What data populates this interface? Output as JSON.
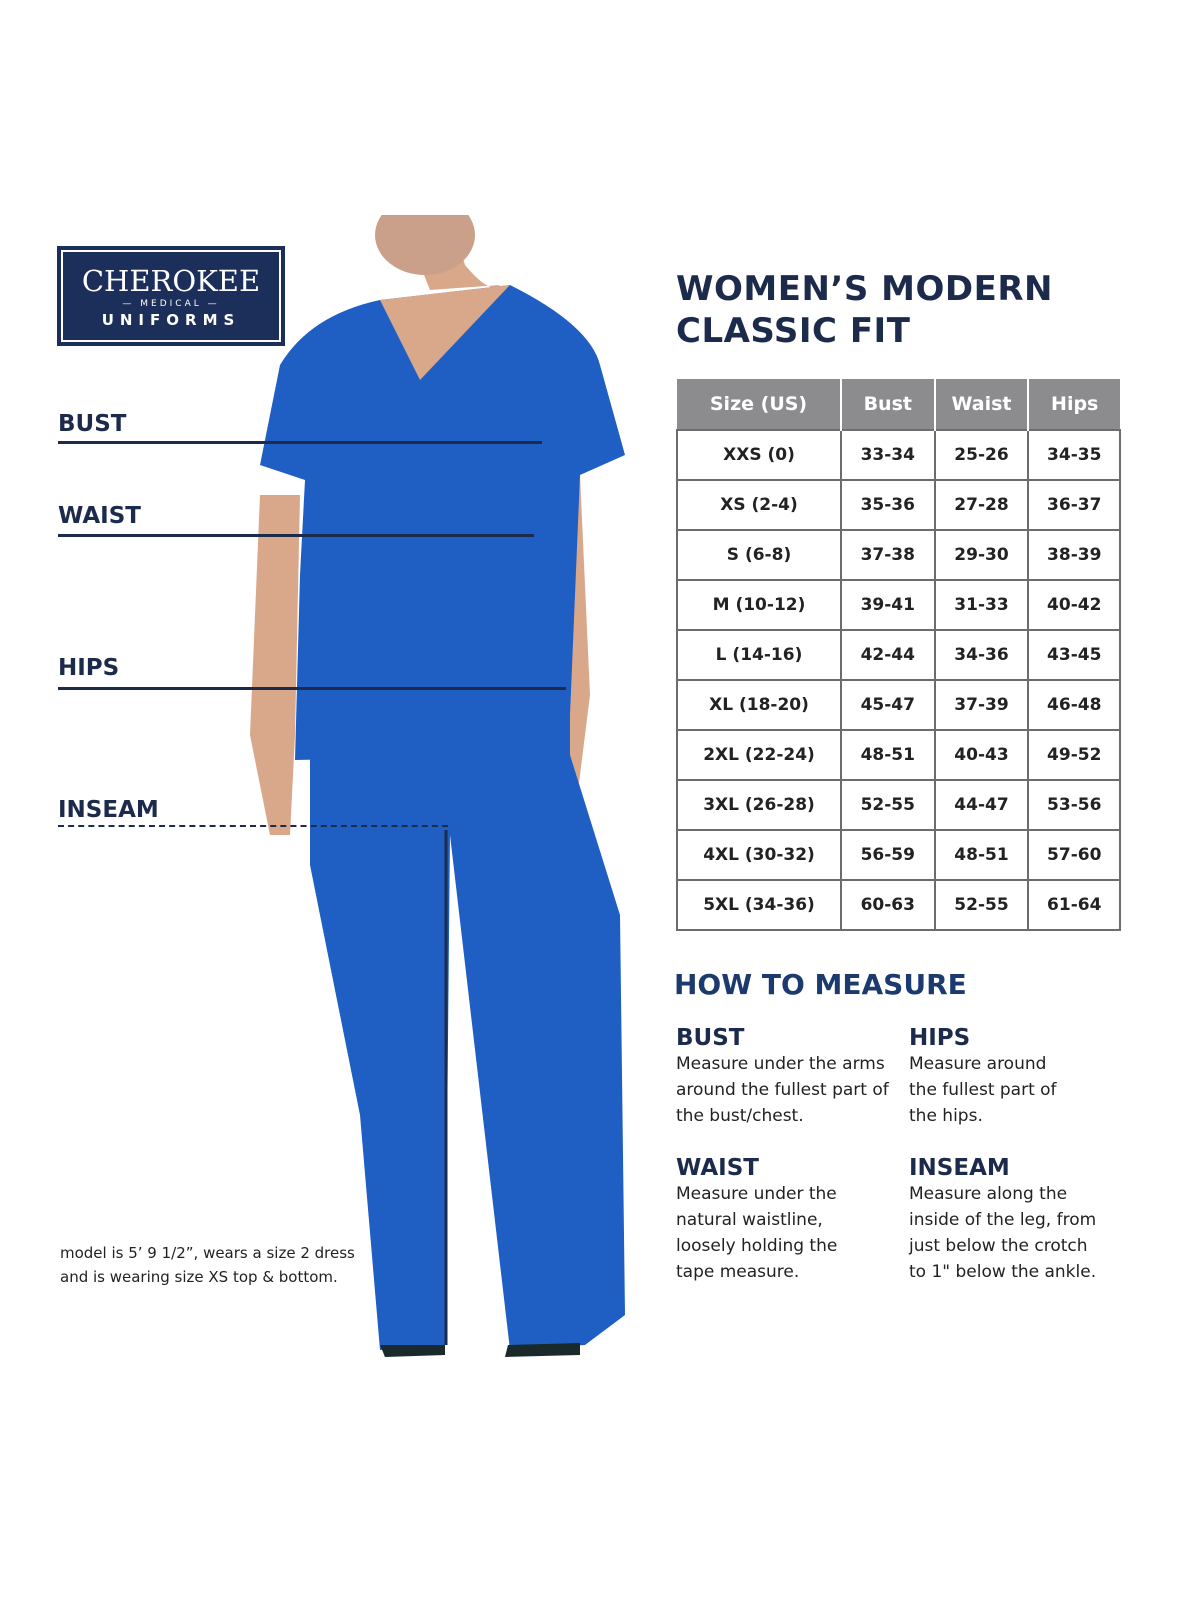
{
  "logo": {
    "brand": "CHEROKEE",
    "sub1": "— MEDICAL —",
    "sub2": "UNIFORMS"
  },
  "measure_labels": [
    "BUST",
    "WAIST",
    "HIPS",
    "INSEAM"
  ],
  "title": {
    "line1": "WOMEN’S MODERN",
    "line2": "CLASSIC FIT"
  },
  "colors": {
    "navy": "#1b2f5a",
    "header_gray": "#8c8c8e",
    "scrub_blue": "#1f5fc4"
  },
  "table": {
    "headers": [
      "Size (US)",
      "Bust",
      "Waist",
      "Hips"
    ],
    "rows": [
      [
        "XXS (0)",
        "33-34",
        "25-26",
        "34-35"
      ],
      [
        "XS (2-4)",
        "35-36",
        "27-28",
        "36-37"
      ],
      [
        "S (6-8)",
        "37-38",
        "29-30",
        "38-39"
      ],
      [
        "M (10-12)",
        "39-41",
        "31-33",
        "40-42"
      ],
      [
        "L (14-16)",
        "42-44",
        "34-36",
        "43-45"
      ],
      [
        "XL (18-20)",
        "45-47",
        "37-39",
        "46-48"
      ],
      [
        "2XL (22-24)",
        "48-51",
        "40-43",
        "49-52"
      ],
      [
        "3XL (26-28)",
        "52-55",
        "44-47",
        "53-56"
      ],
      [
        "4XL (30-32)",
        "56-59",
        "48-51",
        "57-60"
      ],
      [
        "5XL (34-36)",
        "60-63",
        "52-55",
        "61-64"
      ]
    ]
  },
  "how_to": {
    "title": "HOW TO MEASURE",
    "items": [
      {
        "head": "BUST",
        "text": "Measure under the arms around the fullest part of the bust/chest."
      },
      {
        "head": "HIPS",
        "text": "Measure around the fullest part of the hips."
      },
      {
        "head": "WAIST",
        "text": "Measure under the natural waistline, loosely holding the tape measure."
      },
      {
        "head": "INSEAM",
        "text": "Measure along the inside of the leg, from just below the crotch to 1\" below the ankle."
      }
    ]
  },
  "note": {
    "line1": "model is 5’ 9 1/2”, wears a size 2 dress",
    "line2": "and is wearing size XS top & bottom."
  }
}
